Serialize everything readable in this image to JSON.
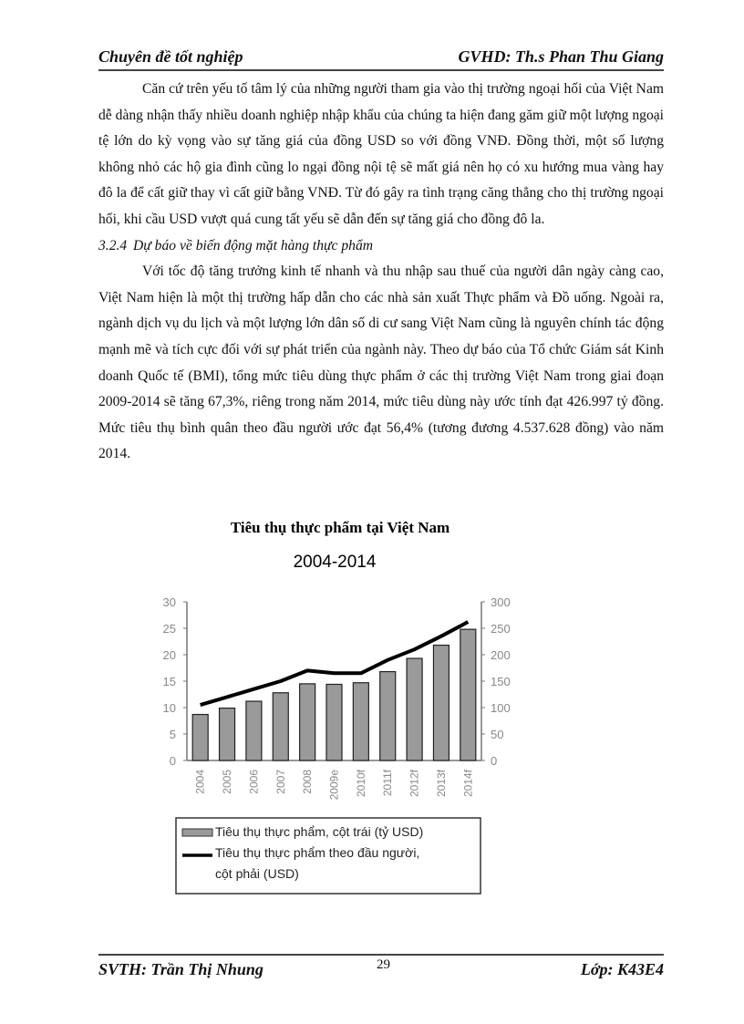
{
  "header": {
    "left": "Chuyên đề tốt nghiệp",
    "right": "GVHD: Th.s Phan Thu Giang"
  },
  "paragraph1": "Căn cứ trên yếu tố tâm lý của những người tham gia vào thị trường ngoại hối của Việt Nam dễ dàng nhận thấy nhiều doanh nghiệp nhập khẩu của chúng ta hiện đang găm giữ một lượng ngoại tệ lớn do kỳ vọng vào sự tăng giá của đồng USD so với đồng VNĐ. Đồng thời, một số lượng không nhỏ các hộ gia đình cũng lo ngại đồng nội tệ sẽ mất giá nên họ có xu hướng mua vàng hay đô la để cất giữ thay vì cất giữ bằng VNĐ. Từ đó gây ra tình trạng căng thẳng cho thị trường ngoại hối, khi cầu USD vượt quá cung tất yếu sẽ dẫn đến sự tăng giá cho đồng đô la.",
  "section": {
    "number": "3.2.4",
    "title": "Dự báo về biến động mặt hàng thực phẩm"
  },
  "paragraph2": "Với tốc độ tăng trưởng kinh tế nhanh và thu nhập sau thuế của người dân ngày càng cao, Việt Nam hiện là một thị trường hấp dẫn cho các nhà sản xuất Thực phẩm và Đồ uống. Ngoài ra, ngành dịch vụ du lịch và một lượng lớn dân số di cư sang Việt Nam cũng là nguyên chính tác động mạnh mẽ và tích cực đối với sự phát triển của ngành này. Theo dự báo của Tổ chức Giám sát Kinh doanh Quốc tế (BMI), tổng mức tiêu dùng thực phẩm ở các thị trường Việt Nam trong giai đoạn 2009-2014 sẽ tăng 67,3%, riêng trong năm 2014, mức tiêu dùng này ước tính đạt 426.997 tỷ đồng. Mức tiêu thụ bình quân theo đầu người ước đạt 56,4% (tương đương 4.537.628 đồng) vào năm 2014.",
  "chart_data": {
    "type": "bar+line",
    "title": "Tiêu thụ thực phẩm tại Việt Nam",
    "subtitle": "2004-2014",
    "categories": [
      "2004",
      "2005",
      "2006",
      "2007",
      "2008",
      "2009e",
      "2010f",
      "2011f",
      "2012f",
      "2013f",
      "2014f"
    ],
    "series": [
      {
        "name": "Tiêu thụ thực phẩm, cột trái (tỷ USD)",
        "type": "bar",
        "axis": "left",
        "color": "#9a9a9a",
        "values": [
          8.7,
          9.9,
          11.2,
          12.8,
          14.5,
          14.4,
          14.7,
          16.8,
          19.3,
          21.8,
          24.8
        ]
      },
      {
        "name": "Tiêu thụ thực phẩm theo đầu người, cột phải (USD)",
        "type": "line",
        "axis": "right",
        "color": "#000000",
        "values": [
          105,
          120,
          135,
          150,
          170,
          165,
          165,
          190,
          210,
          235,
          262
        ]
      }
    ],
    "left_axis": {
      "range": [
        0,
        30
      ],
      "ticks": [
        "0",
        "5",
        "10",
        "15",
        "20",
        "25",
        "30"
      ]
    },
    "right_axis": {
      "range": [
        0,
        300
      ],
      "ticks": [
        "0",
        "50",
        "100",
        "150",
        "200",
        "250",
        "300"
      ]
    },
    "legend_placement": "bottom",
    "legend": [
      "Tiêu thụ thực phẩm, cột trái (tỷ USD)",
      "Tiêu thụ thực phẩm theo đầu người,",
      "cột phải (USD)"
    ],
    "grid": false
  },
  "footer": {
    "left": "SVTH: Trần Thị Nhung",
    "page": "29",
    "right": "Lớp: K43E4"
  }
}
